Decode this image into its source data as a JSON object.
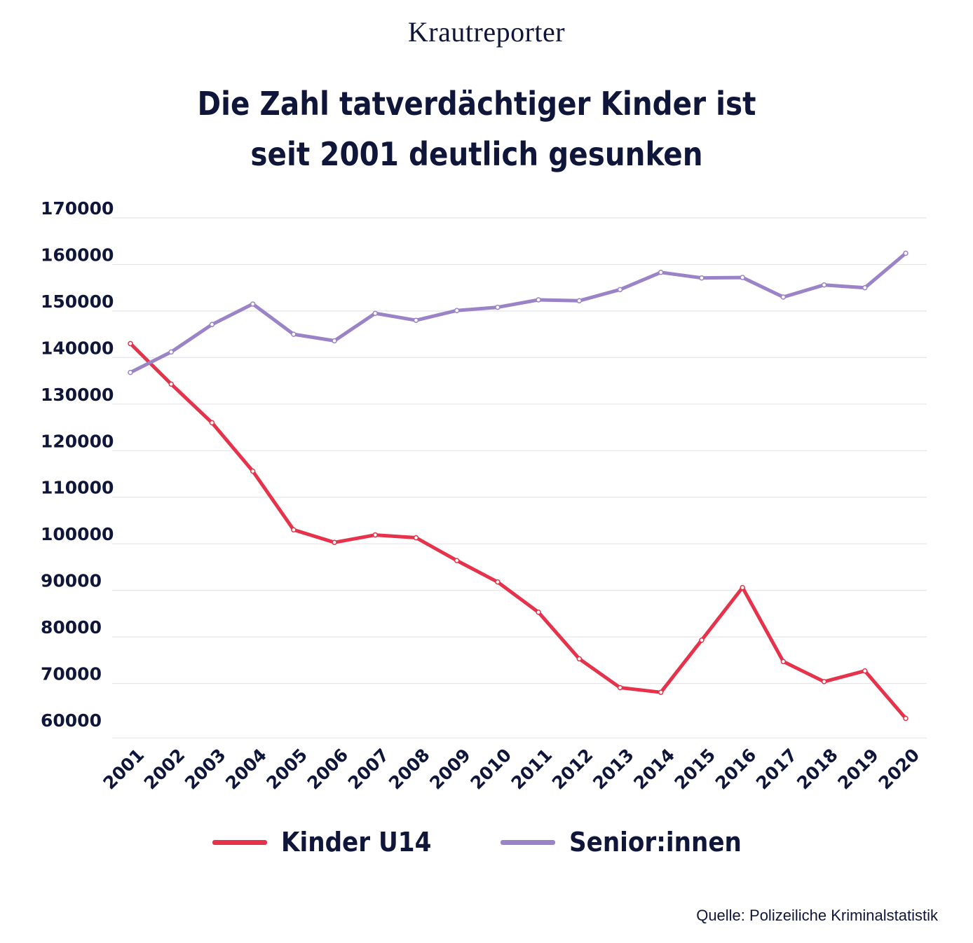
{
  "brand": "Krautreporter",
  "source": "Quelle: Polizeiliche Kriminalstatistik",
  "colors": {
    "kinder": "#e6324b",
    "senioren": "#9b83c8",
    "text": "#10163a",
    "grid": "#e6e6ea"
  },
  "chart_data": {
    "type": "line",
    "title_lines": [
      "Die Zahl tatverdächtiger Kinder ist",
      "seit 2001 deutlich gesunken"
    ],
    "categories": [
      "2001",
      "2002",
      "2003",
      "2004",
      "2005",
      "2006",
      "2007",
      "2008",
      "2009",
      "2010",
      "2011",
      "2012",
      "2013",
      "2014",
      "2015",
      "2016",
      "2017",
      "2018",
      "2019",
      "2020"
    ],
    "yticks": [
      60000,
      70000,
      80000,
      90000,
      100000,
      110000,
      120000,
      130000,
      140000,
      150000,
      160000,
      170000
    ],
    "ylim": [
      58000,
      172000
    ],
    "xlabel": "",
    "ylabel": "",
    "grid": true,
    "legend_position": "bottom-center",
    "series": [
      {
        "name": "Kinder U14",
        "color": "#e6324b",
        "values": [
          143000,
          134300,
          126000,
          115600,
          103000,
          100300,
          101900,
          101300,
          96400,
          91800,
          85300,
          75300,
          69100,
          68100,
          79300,
          90600,
          74700,
          70400,
          72700,
          62500
        ]
      },
      {
        "name": "Senior:innen",
        "color": "#9b83c8",
        "values": [
          136800,
          141200,
          147100,
          151500,
          145000,
          143600,
          149500,
          148000,
          150100,
          150800,
          152400,
          152200,
          154600,
          158300,
          157100,
          157200,
          153000,
          155600,
          155000,
          162400
        ]
      }
    ]
  }
}
